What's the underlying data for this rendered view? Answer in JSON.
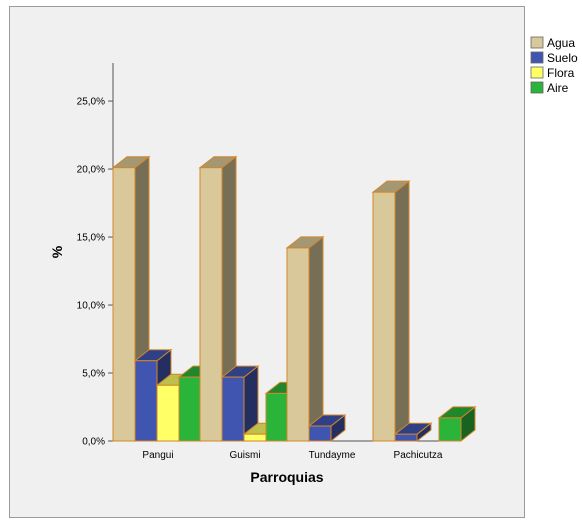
{
  "chart_data": {
    "type": "bar",
    "categories": [
      "Pangui",
      "Guismi",
      "Tundayme",
      "Pachicutza"
    ],
    "series": [
      {
        "name": "Agua",
        "values": [
          20.1,
          20.1,
          14.2,
          18.3
        ],
        "color": "#d9c99a"
      },
      {
        "name": "Suelo",
        "values": [
          5.9,
          4.7,
          1.1,
          0.5
        ],
        "color": "#3f55b0"
      },
      {
        "name": "Flora",
        "values": [
          4.1,
          0.5,
          0,
          0
        ],
        "color": "#ffff66"
      },
      {
        "name": "Aire",
        "values": [
          4.7,
          3.5,
          0,
          1.7
        ],
        "color": "#2bb43a"
      }
    ],
    "title": "",
    "xlabel": "Parroquias",
    "ylabel": "%",
    "ylim": [
      0,
      25
    ],
    "yticks": [
      "0,0%",
      "5,0%",
      "10,0%",
      "15,0%",
      "20,0%",
      "25,0%"
    ],
    "grid": false,
    "legend_position": "top-right",
    "edge_color": "#d4862a",
    "three_d": true
  }
}
